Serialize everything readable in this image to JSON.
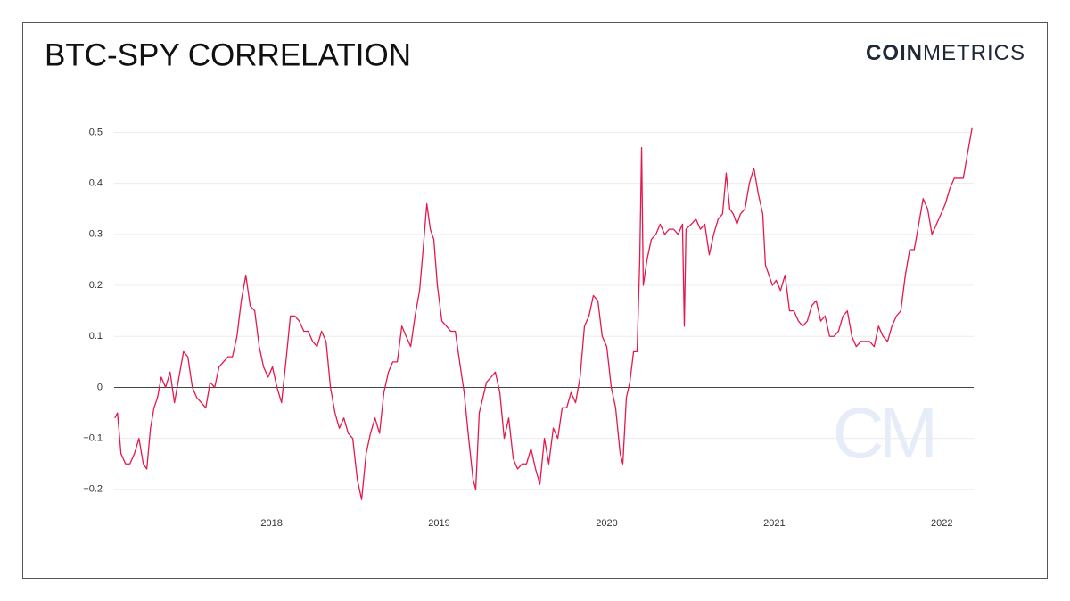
{
  "brand": {
    "bold": "COIN",
    "light": "METRICS"
  },
  "watermark": "CM",
  "chart_data": {
    "type": "line",
    "title": "BTC-SPY CORRELATION",
    "xlim": [
      2017.06,
      2022.19
    ],
    "xticks": [
      2018,
      2019,
      2020,
      2021,
      2022
    ],
    "ylim": [
      -0.23,
      0.52
    ],
    "yticks": [
      {
        "value": -0.2,
        "label": "−0.2"
      },
      {
        "value": -0.1,
        "label": "−0.1"
      },
      0,
      0.1,
      0.2,
      0.3,
      0.4,
      0.5
    ],
    "grid": true,
    "x": [
      2017.064,
      2017.08,
      2017.101,
      2017.128,
      2017.154,
      2017.181,
      2017.208,
      2017.234,
      2017.255,
      2017.277,
      2017.298,
      2017.319,
      2017.341,
      2017.367,
      2017.394,
      2017.42,
      2017.447,
      2017.474,
      2017.5,
      2017.527,
      2017.553,
      2017.58,
      2017.607,
      2017.633,
      2017.66,
      2017.686,
      2017.713,
      2017.74,
      2017.766,
      2017.793,
      2017.819,
      2017.846,
      2017.872,
      2017.899,
      2017.926,
      2017.952,
      2017.979,
      2018.005,
      2018.032,
      2018.059,
      2018.085,
      2018.112,
      2018.138,
      2018.165,
      2018.192,
      2018.218,
      2018.245,
      2018.271,
      2018.298,
      2018.325,
      2018.351,
      2018.378,
      2018.404,
      2018.431,
      2018.457,
      2018.484,
      2018.511,
      2018.537,
      2018.564,
      2018.59,
      2018.617,
      2018.644,
      2018.67,
      2018.697,
      2018.723,
      2018.75,
      2018.777,
      2018.803,
      2018.83,
      2018.856,
      2018.883,
      2018.904,
      2018.926,
      2018.947,
      2018.968,
      2018.989,
      2019.016,
      2019.043,
      2019.069,
      2019.096,
      2019.122,
      2019.149,
      2019.176,
      2019.202,
      2019.218,
      2019.239,
      2019.261,
      2019.282,
      2019.309,
      2019.335,
      2019.362,
      2019.388,
      2019.415,
      2019.442,
      2019.468,
      2019.495,
      2019.521,
      2019.548,
      2019.575,
      2019.601,
      2019.628,
      2019.654,
      2019.681,
      2019.708,
      2019.734,
      2019.761,
      2019.787,
      2019.814,
      2019.841,
      2019.867,
      2019.894,
      2019.92,
      2019.947,
      2019.973,
      2020.0,
      2020.027,
      2020.053,
      2020.08,
      2020.096,
      2020.117,
      2020.138,
      2020.16,
      2020.181,
      2020.197,
      2020.208,
      2020.218,
      2020.24,
      2020.266,
      2020.293,
      2020.319,
      2020.346,
      2020.372,
      2020.399,
      2020.426,
      2020.452,
      2020.463,
      2020.473,
      2020.505,
      2020.532,
      2020.559,
      2020.585,
      2020.612,
      2020.638,
      2020.665,
      2020.691,
      2020.713,
      2020.734,
      2020.755,
      2020.777,
      2020.798,
      2020.825,
      2020.851,
      2020.878,
      2020.904,
      2020.931,
      2020.947,
      2020.968,
      2020.989,
      2021.011,
      2021.037,
      2021.064,
      2021.091,
      2021.117,
      2021.144,
      2021.17,
      2021.197,
      2021.223,
      2021.25,
      2021.277,
      2021.303,
      2021.33,
      2021.356,
      2021.383,
      2021.41,
      2021.436,
      2021.463,
      2021.489,
      2021.516,
      2021.543,
      2021.569,
      2021.596,
      2021.622,
      2021.649,
      2021.676,
      2021.702,
      2021.729,
      2021.755,
      2021.782,
      2021.808,
      2021.835,
      2021.862,
      2021.888,
      2021.915,
      2021.941,
      2021.968,
      2021.995,
      2022.021,
      2022.048,
      2022.074,
      2022.101,
      2022.128,
      2022.154,
      2022.181
    ],
    "series": [
      {
        "color": "#e6174b",
        "values": [
          -0.06,
          -0.05,
          -0.13,
          -0.15,
          -0.15,
          -0.13,
          -0.1,
          -0.15,
          -0.16,
          -0.08,
          -0.04,
          -0.02,
          0.02,
          0.0,
          0.03,
          -0.03,
          0.02,
          0.07,
          0.06,
          0.0,
          -0.02,
          -0.03,
          -0.04,
          0.01,
          0.0,
          0.04,
          0.05,
          0.06,
          0.06,
          0.1,
          0.17,
          0.22,
          0.16,
          0.15,
          0.08,
          0.04,
          0.02,
          0.04,
          0.0,
          -0.03,
          0.05,
          0.14,
          0.14,
          0.13,
          0.11,
          0.11,
          0.09,
          0.08,
          0.11,
          0.09,
          0.0,
          -0.05,
          -0.08,
          -0.06,
          -0.09,
          -0.1,
          -0.18,
          -0.22,
          -0.13,
          -0.09,
          -0.06,
          -0.09,
          -0.01,
          0.03,
          0.05,
          0.05,
          0.12,
          0.1,
          0.08,
          0.14,
          0.19,
          0.27,
          0.36,
          0.31,
          0.29,
          0.2,
          0.13,
          0.12,
          0.11,
          0.11,
          0.05,
          -0.01,
          -0.1,
          -0.18,
          -0.2,
          -0.05,
          -0.02,
          0.01,
          0.02,
          0.03,
          -0.01,
          -0.1,
          -0.06,
          -0.14,
          -0.16,
          -0.15,
          -0.15,
          -0.12,
          -0.16,
          -0.19,
          -0.1,
          -0.15,
          -0.08,
          -0.1,
          -0.04,
          -0.04,
          -0.01,
          -0.03,
          0.02,
          0.12,
          0.14,
          0.18,
          0.17,
          0.1,
          0.08,
          0.0,
          -0.04,
          -0.13,
          -0.15,
          -0.02,
          0.01,
          0.07,
          0.07,
          0.25,
          0.47,
          0.2,
          0.25,
          0.29,
          0.3,
          0.32,
          0.3,
          0.31,
          0.31,
          0.3,
          0.32,
          0.12,
          0.31,
          0.32,
          0.33,
          0.31,
          0.32,
          0.26,
          0.3,
          0.33,
          0.34,
          0.42,
          0.35,
          0.34,
          0.32,
          0.34,
          0.35,
          0.4,
          0.43,
          0.38,
          0.34,
          0.24,
          0.22,
          0.2,
          0.21,
          0.19,
          0.22,
          0.15,
          0.15,
          0.13,
          0.12,
          0.13,
          0.16,
          0.17,
          0.13,
          0.14,
          0.1,
          0.1,
          0.11,
          0.14,
          0.15,
          0.1,
          0.08,
          0.09,
          0.09,
          0.09,
          0.08,
          0.12,
          0.1,
          0.09,
          0.12,
          0.14,
          0.15,
          0.22,
          0.27,
          0.27,
          0.32,
          0.37,
          0.35,
          0.3,
          0.32,
          0.34,
          0.36,
          0.39,
          0.41,
          0.41,
          0.41,
          0.46,
          0.51
        ]
      }
    ]
  }
}
